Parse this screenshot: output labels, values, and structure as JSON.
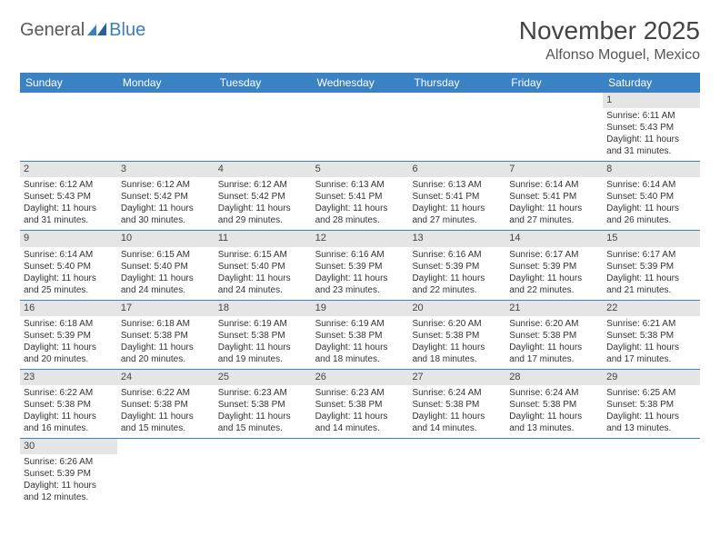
{
  "logo": {
    "part1": "General",
    "part2": "Blue"
  },
  "title": "November 2025",
  "location": "Alfonso Moguel, Mexico",
  "colors": {
    "header_bg": "#3b82c4",
    "header_text": "#ffffff",
    "daynum_bg": "#e5e5e5",
    "row_divider": "#3b82c4",
    "body_text": "#333333"
  },
  "weekdays": [
    "Sunday",
    "Monday",
    "Tuesday",
    "Wednesday",
    "Thursday",
    "Friday",
    "Saturday"
  ],
  "weeks": [
    [
      null,
      null,
      null,
      null,
      null,
      null,
      {
        "n": 1,
        "sr": "6:11 AM",
        "ss": "5:43 PM",
        "dl": "11 hours and 31 minutes."
      }
    ],
    [
      {
        "n": 2,
        "sr": "6:12 AM",
        "ss": "5:43 PM",
        "dl": "11 hours and 31 minutes."
      },
      {
        "n": 3,
        "sr": "6:12 AM",
        "ss": "5:42 PM",
        "dl": "11 hours and 30 minutes."
      },
      {
        "n": 4,
        "sr": "6:12 AM",
        "ss": "5:42 PM",
        "dl": "11 hours and 29 minutes."
      },
      {
        "n": 5,
        "sr": "6:13 AM",
        "ss": "5:41 PM",
        "dl": "11 hours and 28 minutes."
      },
      {
        "n": 6,
        "sr": "6:13 AM",
        "ss": "5:41 PM",
        "dl": "11 hours and 27 minutes."
      },
      {
        "n": 7,
        "sr": "6:14 AM",
        "ss": "5:41 PM",
        "dl": "11 hours and 27 minutes."
      },
      {
        "n": 8,
        "sr": "6:14 AM",
        "ss": "5:40 PM",
        "dl": "11 hours and 26 minutes."
      }
    ],
    [
      {
        "n": 9,
        "sr": "6:14 AM",
        "ss": "5:40 PM",
        "dl": "11 hours and 25 minutes."
      },
      {
        "n": 10,
        "sr": "6:15 AM",
        "ss": "5:40 PM",
        "dl": "11 hours and 24 minutes."
      },
      {
        "n": 11,
        "sr": "6:15 AM",
        "ss": "5:40 PM",
        "dl": "11 hours and 24 minutes."
      },
      {
        "n": 12,
        "sr": "6:16 AM",
        "ss": "5:39 PM",
        "dl": "11 hours and 23 minutes."
      },
      {
        "n": 13,
        "sr": "6:16 AM",
        "ss": "5:39 PM",
        "dl": "11 hours and 22 minutes."
      },
      {
        "n": 14,
        "sr": "6:17 AM",
        "ss": "5:39 PM",
        "dl": "11 hours and 22 minutes."
      },
      {
        "n": 15,
        "sr": "6:17 AM",
        "ss": "5:39 PM",
        "dl": "11 hours and 21 minutes."
      }
    ],
    [
      {
        "n": 16,
        "sr": "6:18 AM",
        "ss": "5:39 PM",
        "dl": "11 hours and 20 minutes."
      },
      {
        "n": 17,
        "sr": "6:18 AM",
        "ss": "5:38 PM",
        "dl": "11 hours and 20 minutes."
      },
      {
        "n": 18,
        "sr": "6:19 AM",
        "ss": "5:38 PM",
        "dl": "11 hours and 19 minutes."
      },
      {
        "n": 19,
        "sr": "6:19 AM",
        "ss": "5:38 PM",
        "dl": "11 hours and 18 minutes."
      },
      {
        "n": 20,
        "sr": "6:20 AM",
        "ss": "5:38 PM",
        "dl": "11 hours and 18 minutes."
      },
      {
        "n": 21,
        "sr": "6:20 AM",
        "ss": "5:38 PM",
        "dl": "11 hours and 17 minutes."
      },
      {
        "n": 22,
        "sr": "6:21 AM",
        "ss": "5:38 PM",
        "dl": "11 hours and 17 minutes."
      }
    ],
    [
      {
        "n": 23,
        "sr": "6:22 AM",
        "ss": "5:38 PM",
        "dl": "11 hours and 16 minutes."
      },
      {
        "n": 24,
        "sr": "6:22 AM",
        "ss": "5:38 PM",
        "dl": "11 hours and 15 minutes."
      },
      {
        "n": 25,
        "sr": "6:23 AM",
        "ss": "5:38 PM",
        "dl": "11 hours and 15 minutes."
      },
      {
        "n": 26,
        "sr": "6:23 AM",
        "ss": "5:38 PM",
        "dl": "11 hours and 14 minutes."
      },
      {
        "n": 27,
        "sr": "6:24 AM",
        "ss": "5:38 PM",
        "dl": "11 hours and 14 minutes."
      },
      {
        "n": 28,
        "sr": "6:24 AM",
        "ss": "5:38 PM",
        "dl": "11 hours and 13 minutes."
      },
      {
        "n": 29,
        "sr": "6:25 AM",
        "ss": "5:38 PM",
        "dl": "11 hours and 13 minutes."
      }
    ],
    [
      {
        "n": 30,
        "sr": "6:26 AM",
        "ss": "5:39 PM",
        "dl": "11 hours and 12 minutes."
      },
      null,
      null,
      null,
      null,
      null,
      null
    ]
  ],
  "labels": {
    "sunrise_prefix": "Sunrise: ",
    "sunset_prefix": "Sunset: ",
    "daylight_prefix": "Daylight: "
  }
}
